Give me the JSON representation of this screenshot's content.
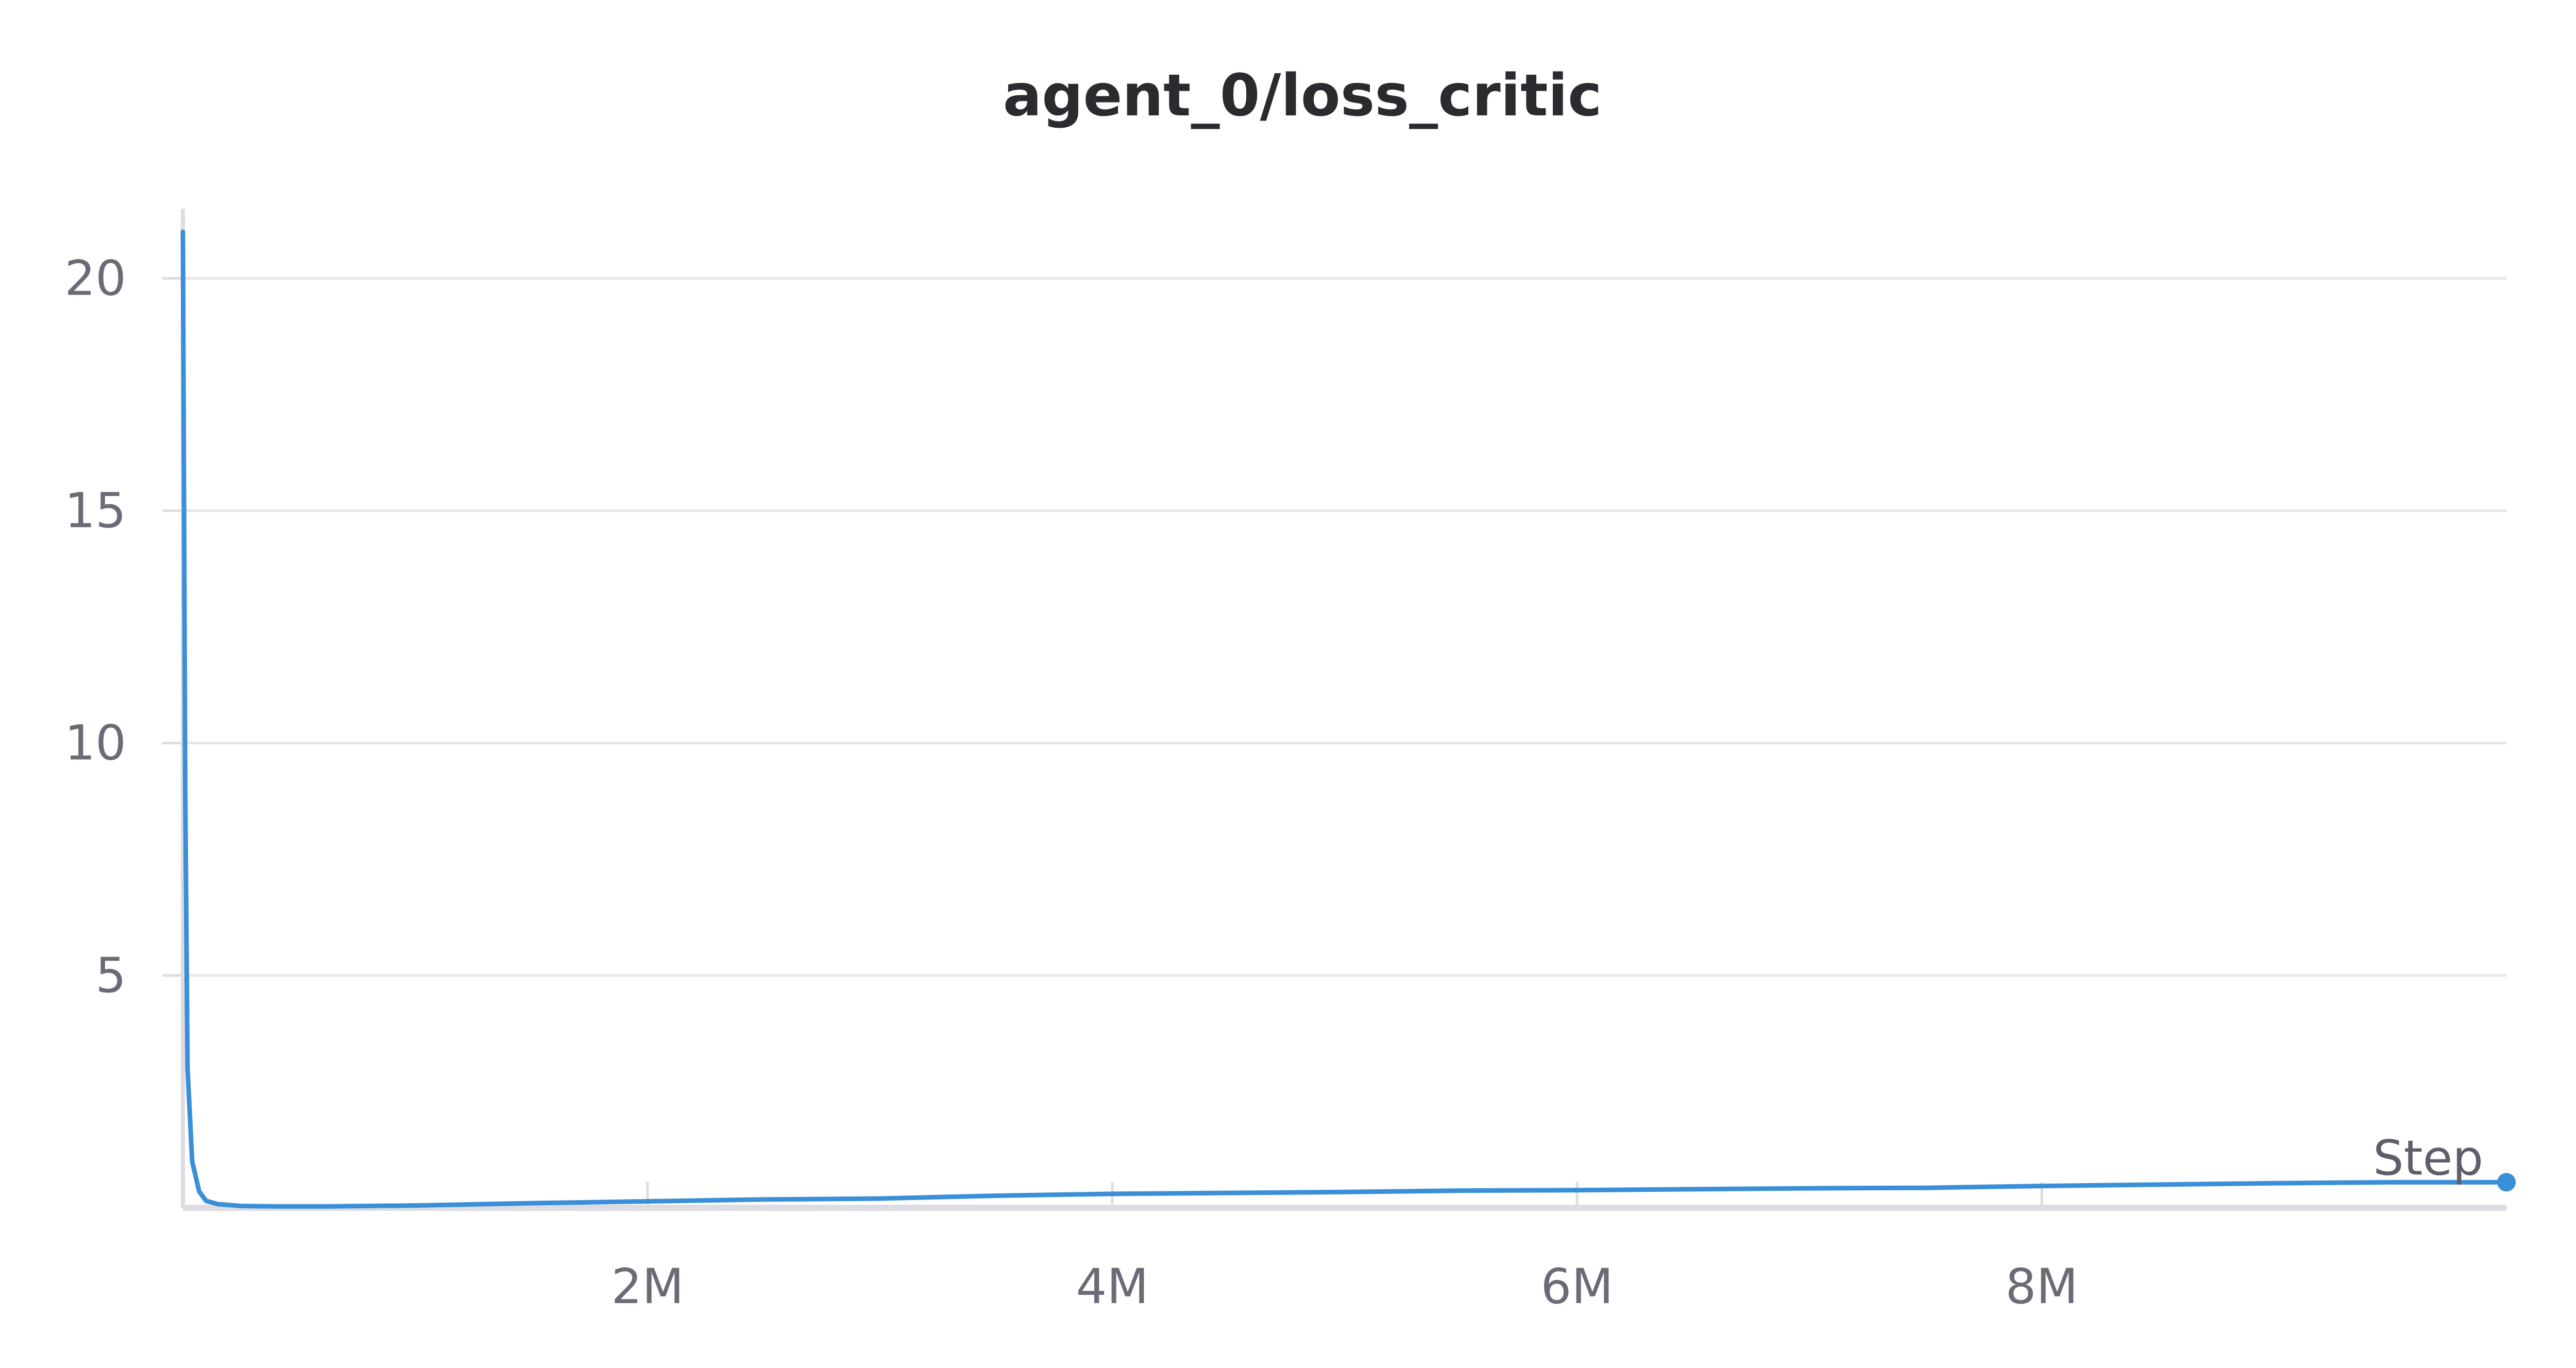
{
  "chart_data": {
    "type": "line",
    "title": "agent_0/loss_critic",
    "xlabel": "Step",
    "ylabel": "",
    "xlim": [
      0,
      10000000
    ],
    "ylim": [
      0,
      21.5
    ],
    "x_ticks": [
      {
        "value": 2000000,
        "label": "2M"
      },
      {
        "value": 4000000,
        "label": "4M"
      },
      {
        "value": 6000000,
        "label": "6M"
      },
      {
        "value": 8000000,
        "label": "8M"
      }
    ],
    "y_ticks": [
      {
        "value": 5,
        "label": "5"
      },
      {
        "value": 10,
        "label": "10"
      },
      {
        "value": 15,
        "label": "15"
      },
      {
        "value": 20,
        "label": "20"
      }
    ],
    "grid": true,
    "series": [
      {
        "color": "#3b8fd9",
        "x": [
          0,
          10000,
          20000,
          40000,
          70000,
          100000,
          150000,
          250000,
          400000,
          600000,
          800000,
          1000000,
          1500000,
          2000000,
          2500000,
          3000000,
          3500000,
          4000000,
          4500000,
          5000000,
          5500000,
          6000000,
          6500000,
          7000000,
          7500000,
          8000000,
          8500000,
          9000000,
          9500000,
          10000000
        ],
        "y": [
          21.0,
          9.0,
          3.0,
          1.0,
          0.35,
          0.15,
          0.08,
          0.04,
          0.03,
          0.03,
          0.04,
          0.05,
          0.1,
          0.14,
          0.18,
          0.2,
          0.26,
          0.3,
          0.32,
          0.34,
          0.37,
          0.38,
          0.4,
          0.42,
          0.43,
          0.47,
          0.5,
          0.53,
          0.55,
          0.55
        ]
      }
    ]
  }
}
